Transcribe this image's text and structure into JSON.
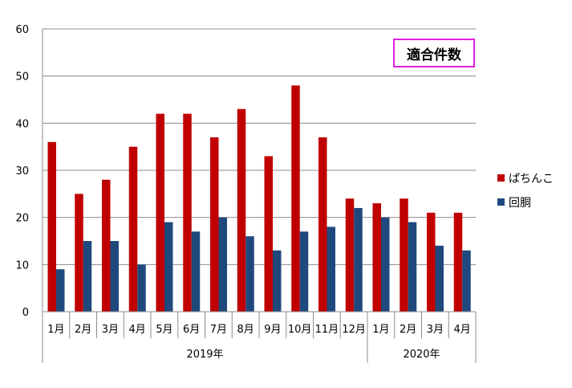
{
  "chart_data": {
    "type": "bar",
    "annotation": "適合件数",
    "categories": [
      "1月",
      "2月",
      "3月",
      "4月",
      "5月",
      "6月",
      "7月",
      "8月",
      "9月",
      "10月",
      "11月",
      "12月",
      "1月",
      "2月",
      "3月",
      "4月"
    ],
    "groups": [
      {
        "label": "2019年",
        "count": 12
      },
      {
        "label": "2020年",
        "count": 4
      }
    ],
    "series": [
      {
        "name": "ぱちんこ",
        "color": "#c00000",
        "values": [
          36,
          25,
          28,
          35,
          42,
          42,
          37,
          43,
          33,
          48,
          37,
          24,
          23,
          24,
          21,
          21
        ]
      },
      {
        "name": "回胴",
        "color": "#1f497d",
        "values": [
          9,
          15,
          15,
          10,
          19,
          17,
          20,
          16,
          13,
          17,
          18,
          22,
          20,
          19,
          14,
          13
        ]
      }
    ],
    "ylim": [
      0,
      60
    ],
    "yticks": [
      0,
      10,
      20,
      30,
      40,
      50,
      60
    ],
    "grid": true,
    "legend_position": "right"
  }
}
